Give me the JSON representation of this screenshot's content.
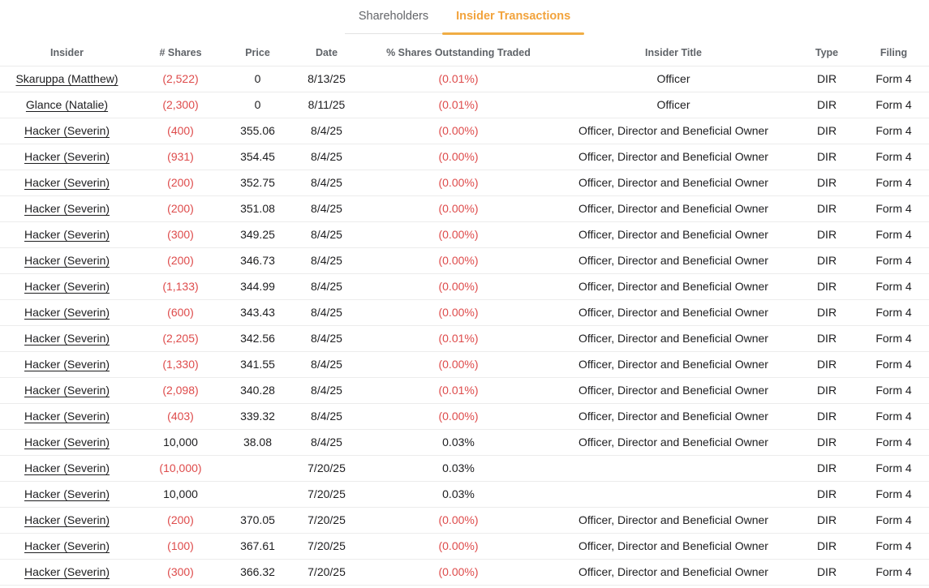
{
  "tabs": [
    {
      "label": "Shareholders",
      "active": false
    },
    {
      "label": "Insider Transactions",
      "active": true
    }
  ],
  "colors": {
    "active_tab_orange": "#f2a33c",
    "tab_underline_orange": "#f0ad44",
    "negative_red": "#de4b4b",
    "header_gray": "#5f6368"
  },
  "table": {
    "headers": [
      "Insider",
      "# Shares",
      "Price",
      "Date",
      "% Shares Outstanding Traded",
      "Insider Title",
      "Type",
      "Filing"
    ],
    "column_keys": [
      "insider",
      "shares",
      "price",
      "date",
      "pct-traded",
      "insider-title",
      "type",
      "filing"
    ],
    "rows": [
      [
        "Skaruppa (Matthew)",
        "(2,522)",
        "0",
        "8/13/25",
        "(0.01%)",
        "Officer",
        "DIR",
        "Form 4"
      ],
      [
        "Glance (Natalie)",
        "(2,300)",
        "0",
        "8/11/25",
        "(0.01%)",
        "Officer",
        "DIR",
        "Form 4"
      ],
      [
        "Hacker (Severin)",
        "(400)",
        "355.06",
        "8/4/25",
        "(0.00%)",
        "Officer, Director and Beneficial Owner",
        "DIR",
        "Form 4"
      ],
      [
        "Hacker (Severin)",
        "(931)",
        "354.45",
        "8/4/25",
        "(0.00%)",
        "Officer, Director and Beneficial Owner",
        "DIR",
        "Form 4"
      ],
      [
        "Hacker (Severin)",
        "(200)",
        "352.75",
        "8/4/25",
        "(0.00%)",
        "Officer, Director and Beneficial Owner",
        "DIR",
        "Form 4"
      ],
      [
        "Hacker (Severin)",
        "(200)",
        "351.08",
        "8/4/25",
        "(0.00%)",
        "Officer, Director and Beneficial Owner",
        "DIR",
        "Form 4"
      ],
      [
        "Hacker (Severin)",
        "(300)",
        "349.25",
        "8/4/25",
        "(0.00%)",
        "Officer, Director and Beneficial Owner",
        "DIR",
        "Form 4"
      ],
      [
        "Hacker (Severin)",
        "(200)",
        "346.73",
        "8/4/25",
        "(0.00%)",
        "Officer, Director and Beneficial Owner",
        "DIR",
        "Form 4"
      ],
      [
        "Hacker (Severin)",
        "(1,133)",
        "344.99",
        "8/4/25",
        "(0.00%)",
        "Officer, Director and Beneficial Owner",
        "DIR",
        "Form 4"
      ],
      [
        "Hacker (Severin)",
        "(600)",
        "343.43",
        "8/4/25",
        "(0.00%)",
        "Officer, Director and Beneficial Owner",
        "DIR",
        "Form 4"
      ],
      [
        "Hacker (Severin)",
        "(2,205)",
        "342.56",
        "8/4/25",
        "(0.01%)",
        "Officer, Director and Beneficial Owner",
        "DIR",
        "Form 4"
      ],
      [
        "Hacker (Severin)",
        "(1,330)",
        "341.55",
        "8/4/25",
        "(0.00%)",
        "Officer, Director and Beneficial Owner",
        "DIR",
        "Form 4"
      ],
      [
        "Hacker (Severin)",
        "(2,098)",
        "340.28",
        "8/4/25",
        "(0.01%)",
        "Officer, Director and Beneficial Owner",
        "DIR",
        "Form 4"
      ],
      [
        "Hacker (Severin)",
        "(403)",
        "339.32",
        "8/4/25",
        "(0.00%)",
        "Officer, Director and Beneficial Owner",
        "DIR",
        "Form 4"
      ],
      [
        "Hacker (Severin)",
        "10,000",
        "38.08",
        "8/4/25",
        "0.03%",
        "Officer, Director and Beneficial Owner",
        "DIR",
        "Form 4"
      ],
      [
        "Hacker (Severin)",
        "(10,000)",
        "",
        "7/20/25",
        "0.03%",
        "",
        "DIR",
        "Form 4"
      ],
      [
        "Hacker (Severin)",
        "10,000",
        "",
        "7/20/25",
        "0.03%",
        "",
        "DIR",
        "Form 4"
      ],
      [
        "Hacker (Severin)",
        "(200)",
        "370.05",
        "7/20/25",
        "(0.00%)",
        "Officer, Director and Beneficial Owner",
        "DIR",
        "Form 4"
      ],
      [
        "Hacker (Severin)",
        "(100)",
        "367.61",
        "7/20/25",
        "(0.00%)",
        "Officer, Director and Beneficial Owner",
        "DIR",
        "Form 4"
      ],
      [
        "Hacker (Severin)",
        "(300)",
        "366.32",
        "7/20/25",
        "(0.00%)",
        "Officer, Director and Beneficial Owner",
        "DIR",
        "Form 4"
      ]
    ]
  }
}
